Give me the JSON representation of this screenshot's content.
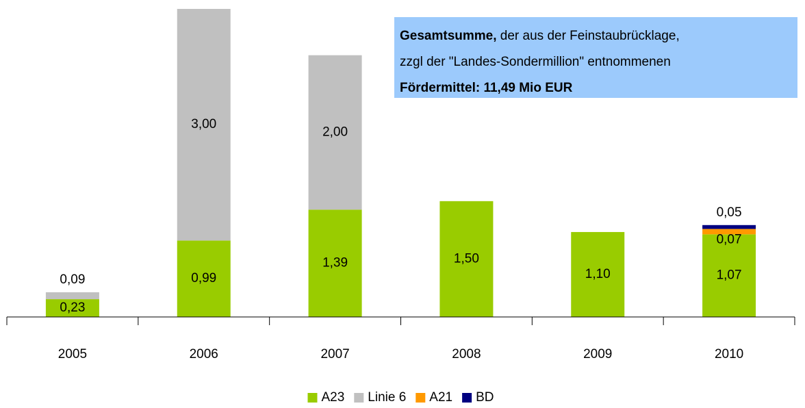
{
  "chart_data": {
    "type": "stacked_bar",
    "categories": [
      "2005",
      "2006",
      "2007",
      "2008",
      "2009",
      "2010"
    ],
    "series": [
      {
        "name": "A23",
        "color": "#99cc00",
        "values": [
          0.23,
          0.99,
          1.39,
          1.5,
          1.1,
          1.07
        ],
        "value_labels": [
          "0,23",
          "0,99",
          "1,39",
          "1,50",
          "1,10",
          "1,07"
        ]
      },
      {
        "name": "Linie 6",
        "color": "#c0c0c0",
        "values": [
          0.09,
          3.0,
          2.0,
          null,
          null,
          null
        ],
        "value_labels": [
          "0,09",
          "3,00",
          "2,00",
          null,
          null,
          null
        ]
      },
      {
        "name": "A21",
        "color": "#ff9900",
        "values": [
          null,
          null,
          null,
          null,
          null,
          0.07
        ],
        "value_labels": [
          null,
          null,
          null,
          null,
          null,
          "0,07"
        ]
      },
      {
        "name": "BD",
        "color": "#000080",
        "values": [
          null,
          null,
          null,
          null,
          null,
          0.05
        ],
        "value_labels": [
          null,
          null,
          null,
          null,
          null,
          "0,05"
        ]
      }
    ],
    "annotation": [
      [
        {
          "text": "Gesamtsumme,",
          "bold": true
        },
        {
          "text": " der aus der Feinstaubrücklage,",
          "bold": false
        }
      ],
      [
        {
          "text": "zzgl der \"Landes-Sondermillion\" entnommenen",
          "bold": false
        }
      ],
      [
        {
          "text": "Fördermittel: 11,49 Mio EUR",
          "bold": true
        }
      ]
    ],
    "annotation_color": "#9ccafc",
    "legend": "bottom"
  }
}
